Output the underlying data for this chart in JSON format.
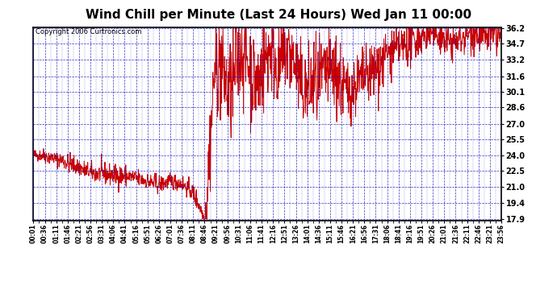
{
  "title": "Wind Chill per Minute (Last 24 Hours) Wed Jan 11 00:00",
  "copyright": "Copyright 2006 Curtronics.com",
  "yticks": [
    17.9,
    19.4,
    21.0,
    22.5,
    24.0,
    25.5,
    27.0,
    28.6,
    30.1,
    31.6,
    33.2,
    34.7,
    36.2
  ],
  "xtick_labels": [
    "00:01",
    "00:36",
    "01:11",
    "01:46",
    "02:21",
    "02:56",
    "03:31",
    "04:06",
    "04:41",
    "05:16",
    "05:51",
    "06:26",
    "07:01",
    "07:36",
    "08:11",
    "08:46",
    "09:21",
    "09:56",
    "10:31",
    "11:06",
    "11:41",
    "12:16",
    "12:51",
    "13:26",
    "14:01",
    "14:36",
    "15:11",
    "15:46",
    "16:21",
    "16:56",
    "17:31",
    "18:06",
    "18:41",
    "19:16",
    "19:51",
    "20:26",
    "21:01",
    "21:36",
    "22:11",
    "22:46",
    "23:21",
    "23:56"
  ],
  "ymin": 17.9,
  "ymax": 36.2,
  "line_color": "#cc0000",
  "background_color": "#ffffff",
  "grid_color": "#0000bb",
  "title_fontsize": 11,
  "border_color": "#000000"
}
